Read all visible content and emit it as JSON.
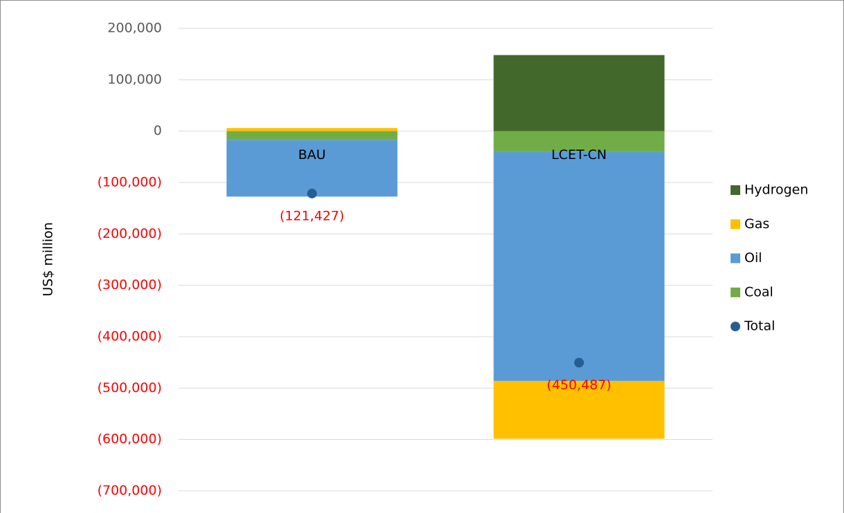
{
  "chart_data": {
    "type": "stacked_bar",
    "y_label": "US$ million",
    "categories": [
      "BAU",
      "LCET-CN"
    ],
    "series": [
      {
        "name": "Hydrogen",
        "color": "#43682b",
        "values": [
          0,
          148000
        ]
      },
      {
        "name": "Gas",
        "color": "#ffc000",
        "values": [
          6000,
          -112487
        ]
      },
      {
        "name": "Oil",
        "color": "#5b9bd5",
        "values": [
          -110427,
          -446000
        ]
      },
      {
        "name": "Coal",
        "color": "#70ad47",
        "values": [
          -17000,
          -40000
        ]
      }
    ],
    "totals": {
      "name": "Total",
      "color": "#255e91",
      "values": [
        -121427,
        -450487
      ],
      "value_labels": [
        "(121,427)",
        "(450,487)"
      ],
      "label_color": "#ff0000"
    },
    "ylim": [
      -700000,
      200000
    ],
    "yticks": [
      {
        "value": 200000,
        "label": "200,000"
      },
      {
        "value": 100000,
        "label": "100,000"
      },
      0,
      {
        "value": -100000,
        "label": "(100,000)"
      },
      {
        "value": -200000,
        "label": "(200,000)"
      },
      {
        "value": -300000,
        "label": "(300,000)"
      },
      {
        "value": -400000,
        "label": "(400,000)"
      },
      {
        "value": -500000,
        "label": "(500,000)"
      },
      {
        "value": -600000,
        "label": "(600,000)"
      },
      {
        "value": -700000,
        "label": "(700,000)"
      }
    ],
    "negative_label_color": "#ff0000",
    "grid": true,
    "legend": "right"
  }
}
